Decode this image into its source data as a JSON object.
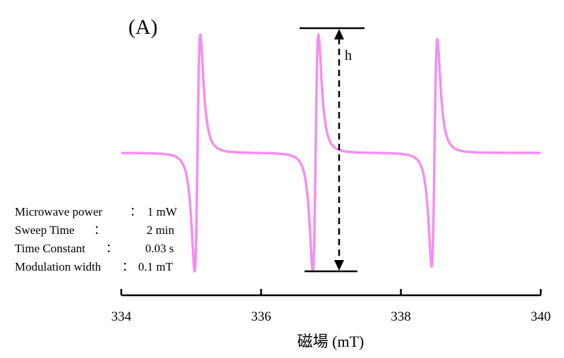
{
  "chart_data": {
    "type": "line",
    "panel_label": "(A)",
    "xlabel": "磁場 (mT)",
    "ylabel": "",
    "xlim": [
      334,
      340
    ],
    "xticks": [
      334,
      336,
      338,
      340
    ],
    "x_tick_labels": [
      "334",
      "336",
      "338",
      "340"
    ],
    "series": [
      {
        "color": "#f58ef0",
        "baseline": 0,
        "lines": [
          {
            "center": 335.09,
            "amplitude": 1.0
          },
          {
            "center": 336.78,
            "amplitude": 1.0
          },
          {
            "center": 338.48,
            "amplitude": 0.96
          }
        ]
      }
    ],
    "annotations": {
      "peak_height_label": "h",
      "arrow_style": "dashed double-headed"
    },
    "parameters": [
      {
        "name": "Microwave power",
        "sep": "：",
        "value": "1 mW"
      },
      {
        "name": "Sweep Time",
        "sep": "：",
        "value": "2 min"
      },
      {
        "name": "Time Constant",
        "sep": "：",
        "value": "0.03 s"
      },
      {
        "name": "Modulation width",
        "sep": "：",
        "value": "0.1 mT"
      }
    ]
  },
  "colors": {
    "trace": "#f58ef0",
    "axis": "#000000"
  }
}
